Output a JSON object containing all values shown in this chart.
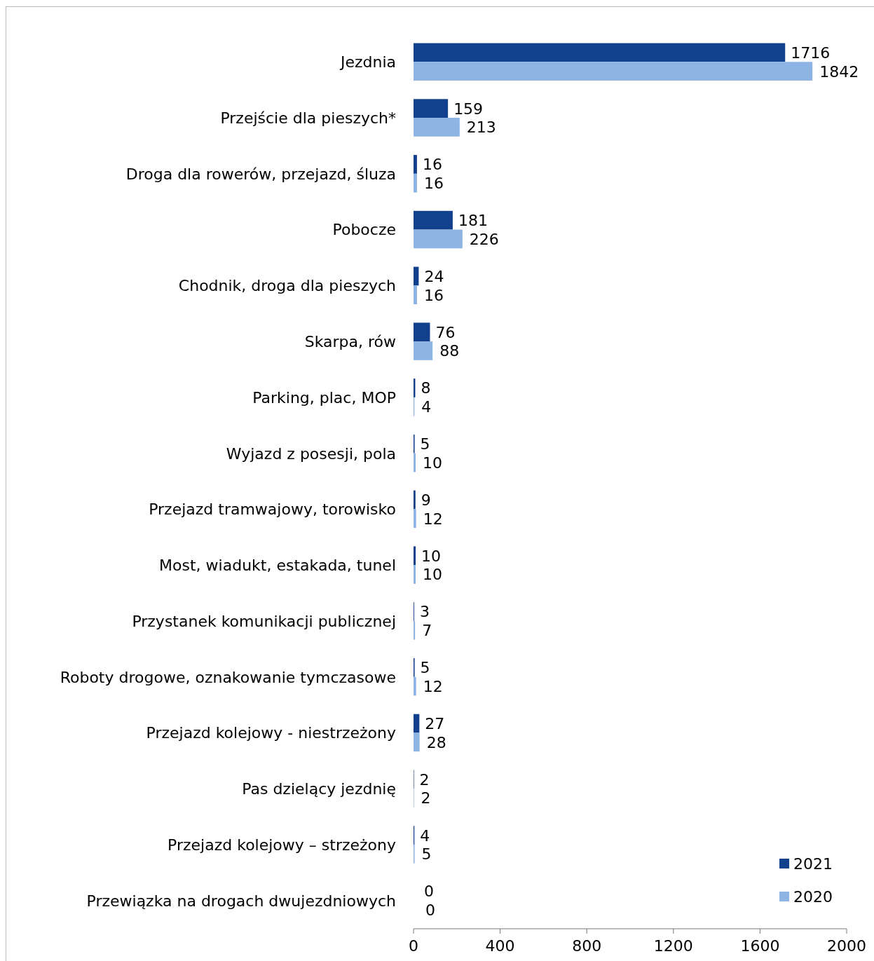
{
  "chart_data": {
    "type": "bar",
    "orientation": "horizontal",
    "categories": [
      "Jezdnia",
      "Przejście dla pieszych*",
      "Droga dla rowerów, przejazd, śluza",
      "Pobocze",
      "Chodnik, droga dla pieszych",
      "Skarpa, rów",
      "Parking, plac, MOP",
      "Wyjazd z posesji, pola",
      "Przejazd tramwajowy, torowisko",
      "Most, wiadukt, estakada, tunel",
      "Przystanek komunikacji publicznej",
      "Roboty drogowe, oznakowanie tymczasowe",
      "Przejazd kolejowy - niestrzeżony",
      "Pas dzielący jezdnię",
      "Przejazd kolejowy – strzeżony",
      "Przewiązka na drogach dwujezdniowych"
    ],
    "series": [
      {
        "name": "2021",
        "color": "#12408c",
        "values": [
          1716,
          159,
          16,
          181,
          24,
          76,
          8,
          5,
          9,
          10,
          3,
          5,
          27,
          2,
          4,
          0
        ]
      },
      {
        "name": "2020",
        "color": "#8eb4e3",
        "values": [
          1842,
          213,
          16,
          226,
          16,
          88,
          4,
          10,
          12,
          10,
          7,
          12,
          28,
          2,
          5,
          0
        ]
      }
    ],
    "xlim": [
      0,
      2000
    ],
    "xticks": [
      0,
      400,
      800,
      1200,
      1600,
      2000
    ],
    "data_labels": true,
    "legend": "bottom right",
    "grid": false
  }
}
